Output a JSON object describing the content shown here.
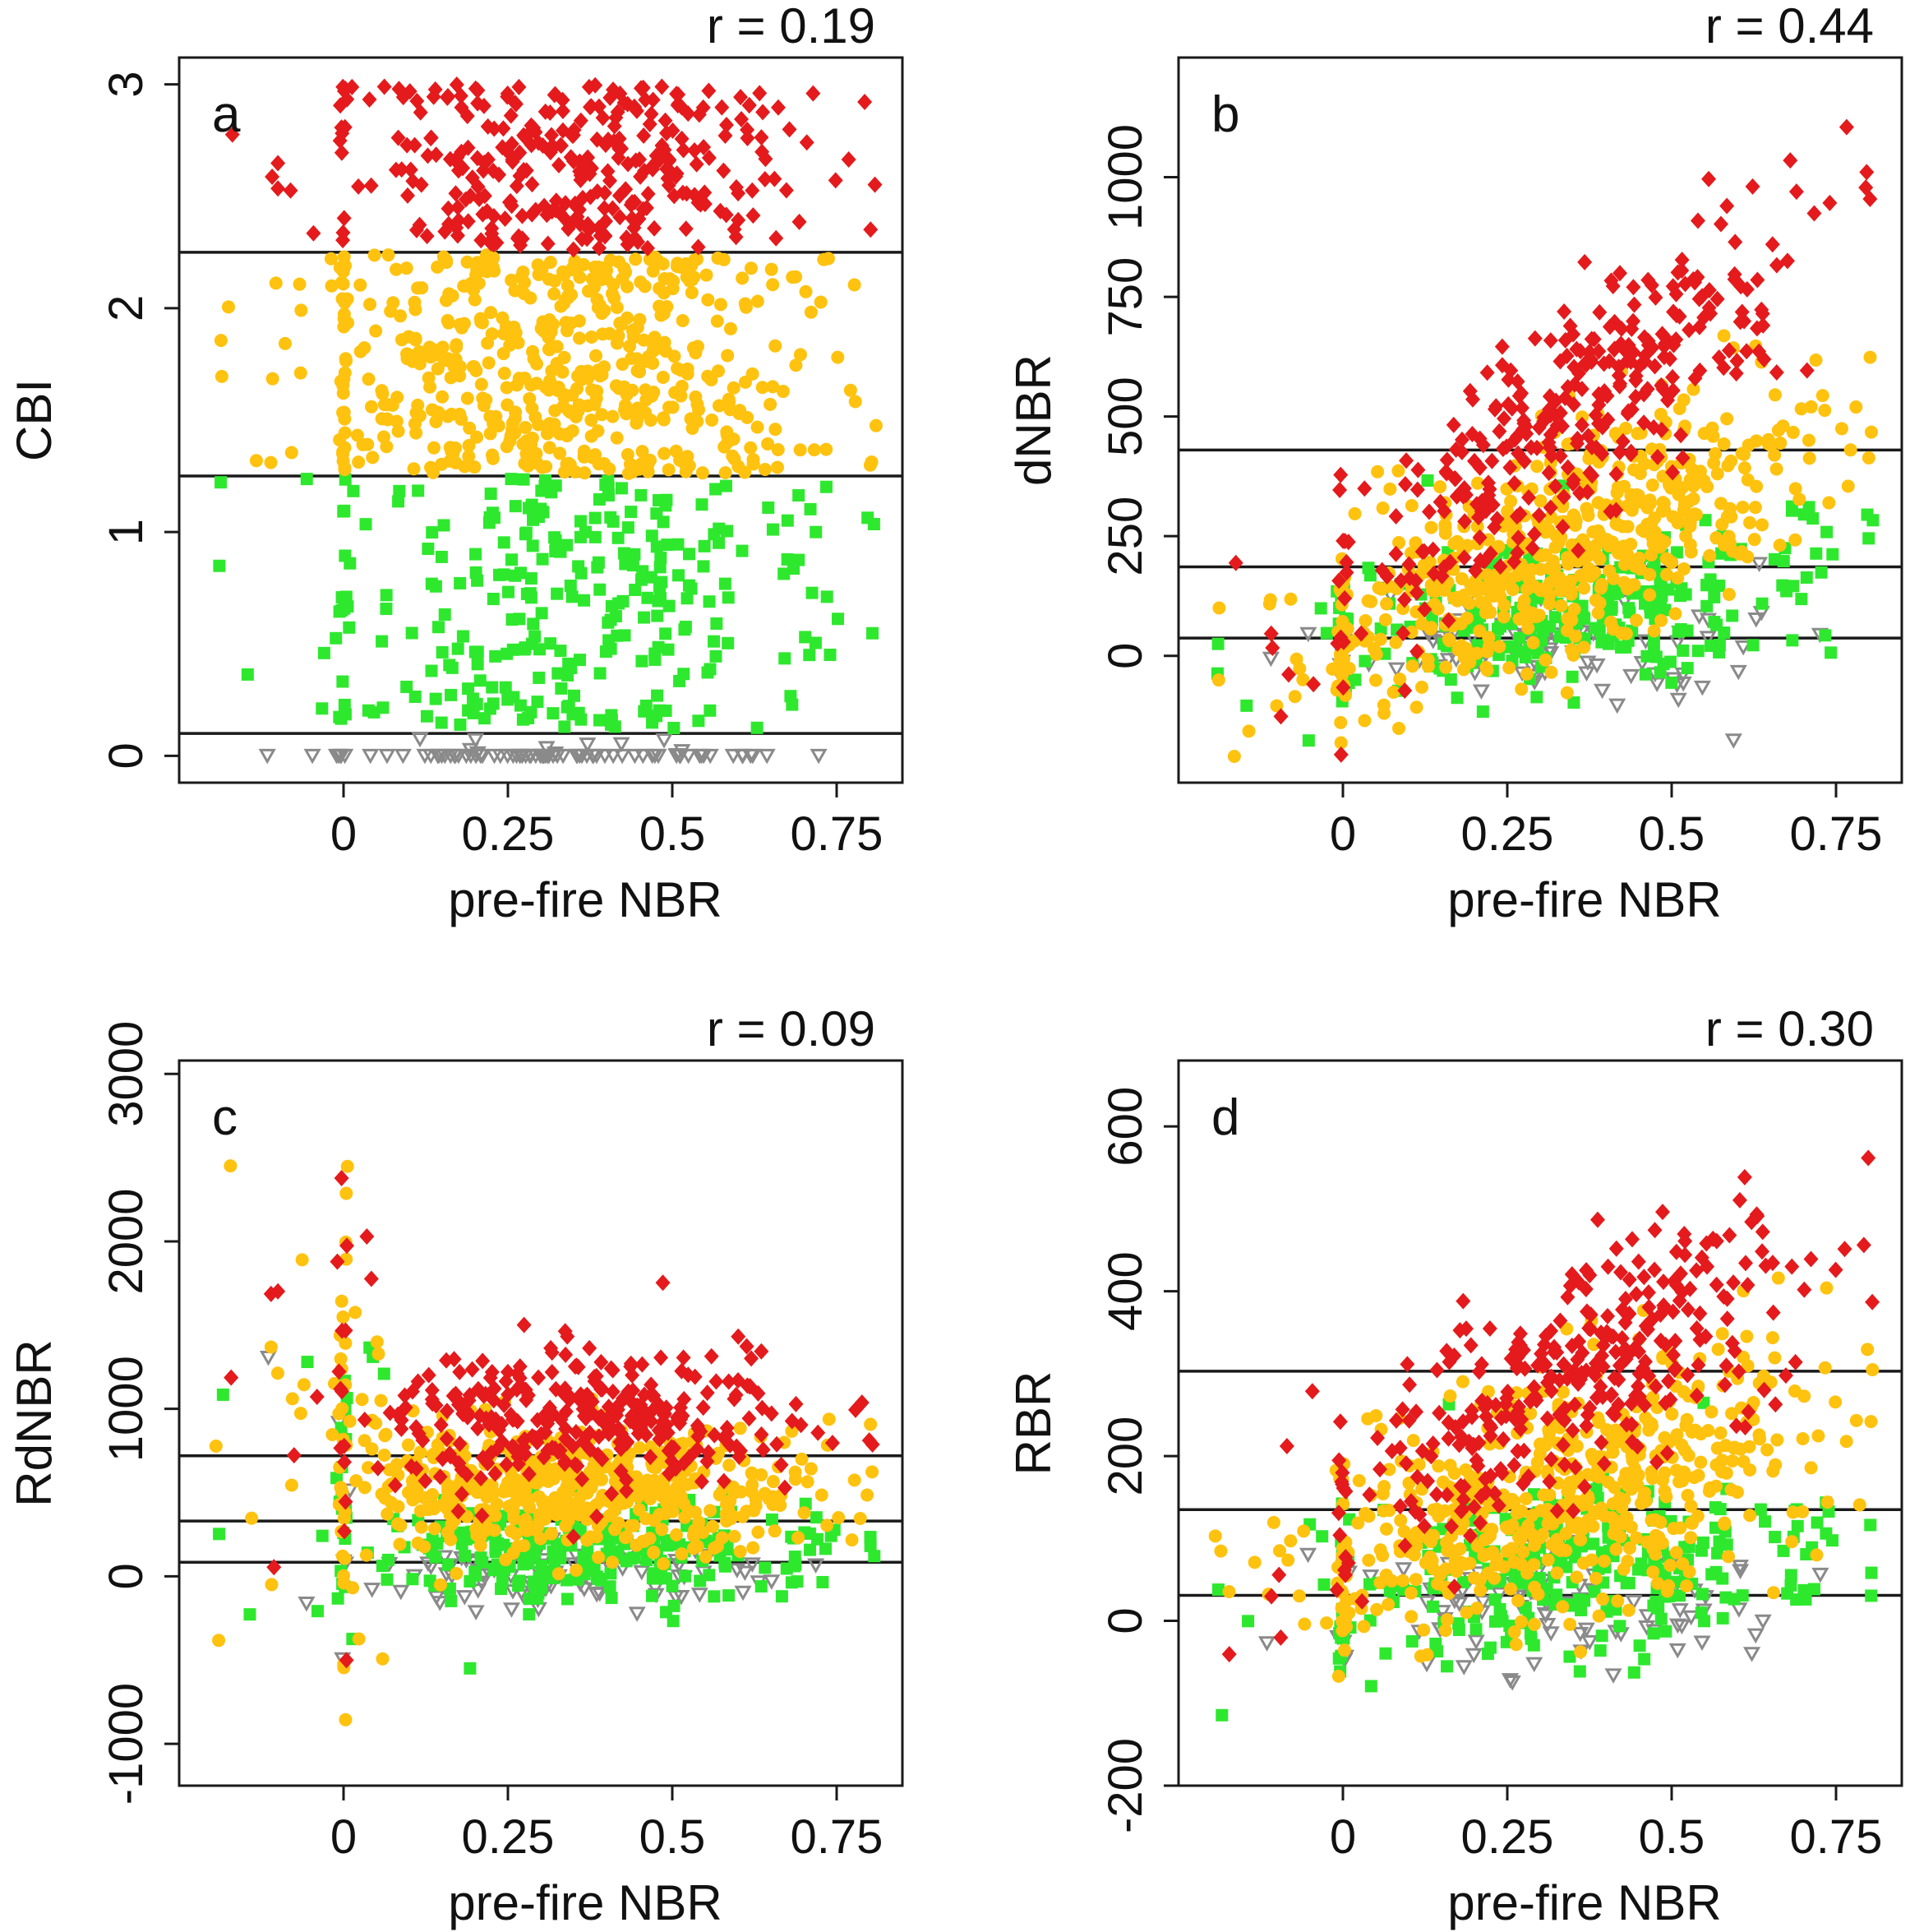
{
  "colors": {
    "high": "#e41a1c",
    "moderate": "#ffc20e",
    "low": "#2ee82e",
    "unchanged": "#8a8a8a"
  },
  "chart_data": [
    {
      "type": "scatter",
      "panel": "a",
      "r_label": "r = 0.19",
      "xlabel": "pre-fire NBR",
      "ylabel": "CBI",
      "xlim": [
        -0.25,
        0.85
      ],
      "ylim": [
        -0.12,
        3.12
      ],
      "xticks": [
        0,
        0.25,
        0.5,
        0.75
      ],
      "xtick_labels": [
        "0",
        "0.25",
        "0.5",
        "0.75"
      ],
      "yticks": [
        0,
        1,
        2,
        3
      ],
      "ytick_labels": [
        "0",
        "1",
        "2",
        "3"
      ],
      "thresholds": [
        0.1,
        1.25,
        2.25
      ],
      "x_range": [
        -0.2,
        0.82
      ]
    },
    {
      "type": "scatter",
      "panel": "b",
      "r_label": "r = 0.44",
      "xlabel": "pre-fire NBR",
      "ylabel": "dNBR",
      "xlim": [
        -0.25,
        0.85
      ],
      "ylim": [
        -265,
        1250
      ],
      "xticks": [
        0,
        0.25,
        0.5,
        0.75
      ],
      "xtick_labels": [
        "0",
        "0.25",
        "0.5",
        "0.75"
      ],
      "yticks": [
        0,
        250,
        500,
        750,
        1000
      ],
      "ytick_labels": [
        "0",
        "250",
        "500",
        "750",
        "1000"
      ],
      "thresholds": [
        37,
        186,
        430
      ],
      "x_range": [
        -0.2,
        0.82
      ]
    },
    {
      "type": "scatter",
      "panel": "c",
      "r_label": "r = 0.09",
      "xlabel": "pre-fire NBR",
      "ylabel": "RdNBR",
      "xlim": [
        -0.25,
        0.85
      ],
      "ylim": [
        -1250,
        3080
      ],
      "xticks": [
        0,
        0.25,
        0.5,
        0.75
      ],
      "xtick_labels": [
        "0",
        "0.25",
        "0.5",
        "0.75"
      ],
      "yticks": [
        -1000,
        0,
        1000,
        2000,
        3000
      ],
      "ytick_labels": [
        "-1000",
        "0",
        "1000",
        "2000",
        "3000"
      ],
      "thresholds": [
        84,
        330,
        720
      ],
      "x_range": [
        -0.2,
        0.82
      ]
    },
    {
      "type": "scatter",
      "panel": "d",
      "r_label": "r = 0.30",
      "xlabel": "pre-fire NBR",
      "ylabel": "RBR",
      "xlim": [
        -0.25,
        0.85
      ],
      "ylim": [
        -200,
        680
      ],
      "xticks": [
        0,
        0.25,
        0.5,
        0.75
      ],
      "xtick_labels": [
        "0",
        "0.25",
        "0.5",
        "0.75"
      ],
      "yticks": [
        -200,
        0,
        200,
        400,
        600
      ],
      "ytick_labels": [
        "-200",
        "0",
        "200",
        "400",
        "600"
      ],
      "thresholds": [
        31,
        135,
        303
      ],
      "x_range": [
        -0.2,
        0.82
      ]
    }
  ]
}
